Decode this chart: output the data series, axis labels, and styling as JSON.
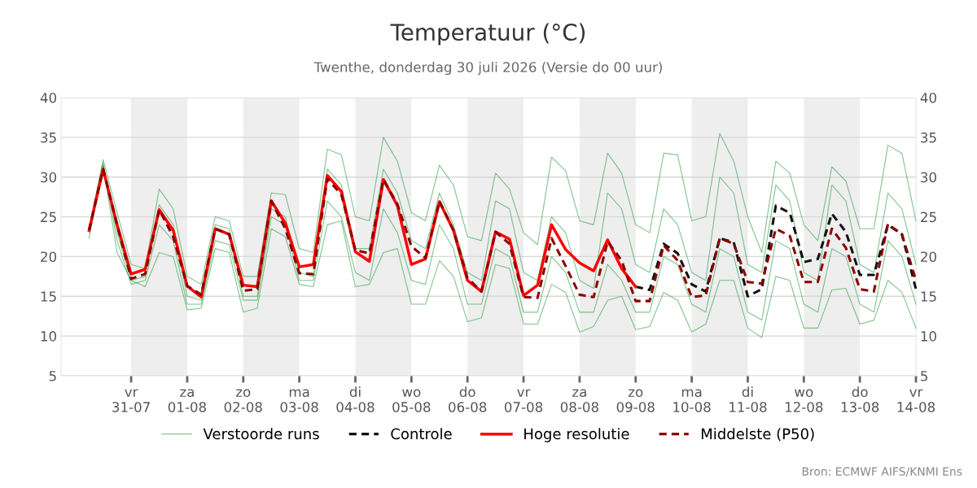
{
  "chart_data": {
    "type": "line",
    "title": "Temperatuur (°C)",
    "subtitle": "Twenthe, donderdag 30 juli 2026 (Versie do 00 uur)",
    "x": [
      "2026-07-30T06:00",
      "2026-07-30T12:00",
      "2026-07-30T18:00",
      "2026-07-31T00:00",
      "2026-07-31T06:00",
      "2026-07-31T12:00",
      "2026-07-31T18:00",
      "2026-08-01T00:00",
      "2026-08-01T06:00",
      "2026-08-01T12:00",
      "2026-08-01T18:00",
      "2026-08-02T00:00",
      "2026-08-02T06:00",
      "2026-08-02T12:00",
      "2026-08-02T18:00",
      "2026-08-03T00:00",
      "2026-08-03T06:00",
      "2026-08-03T12:00",
      "2026-08-03T18:00",
      "2026-08-04T00:00",
      "2026-08-04T06:00",
      "2026-08-04T12:00",
      "2026-08-04T18:00",
      "2026-08-05T00:00",
      "2026-08-05T06:00",
      "2026-08-05T12:00",
      "2026-08-05T18:00",
      "2026-08-06T00:00",
      "2026-08-06T06:00",
      "2026-08-06T12:00",
      "2026-08-06T18:00",
      "2026-08-07T00:00",
      "2026-08-07T06:00",
      "2026-08-07T12:00",
      "2026-08-07T18:00",
      "2026-08-08T00:00",
      "2026-08-08T06:00",
      "2026-08-08T12:00",
      "2026-08-08T18:00",
      "2026-08-09T00:00",
      "2026-08-09T06:00",
      "2026-08-09T12:00",
      "2026-08-09T18:00",
      "2026-08-10T00:00",
      "2026-08-10T06:00",
      "2026-08-10T12:00",
      "2026-08-10T18:00",
      "2026-08-11T00:00",
      "2026-08-11T06:00",
      "2026-08-11T12:00",
      "2026-08-11T18:00",
      "2026-08-12T00:00",
      "2026-08-12T06:00",
      "2026-08-12T12:00",
      "2026-08-12T18:00",
      "2026-08-13T00:00",
      "2026-08-13T06:00",
      "2026-08-13T12:00",
      "2026-08-13T18:00",
      "2026-08-14T00:00"
    ],
    "series": [
      {
        "name": "Verstoorde runs",
        "color": "#2e9e44",
        "values": [
          23.5,
          32.2,
          25.5,
          19,
          18.5,
          28.5,
          26,
          17.5,
          16.5,
          25,
          24.5,
          17.5,
          17.5,
          28,
          27.8,
          21,
          20.5,
          33.5,
          32.8,
          25,
          24.5,
          35,
          32,
          25.5,
          24.5,
          31.5,
          29,
          22.5,
          22,
          30.5,
          28.5,
          23,
          21.5,
          32.5,
          30.8,
          24.5,
          24,
          33,
          30.5,
          24,
          23,
          33,
          32.8,
          24.5,
          25,
          35.5,
          32,
          25,
          20.5,
          32,
          30.5,
          24,
          22,
          31.3,
          29.5,
          23.5,
          23.5,
          34,
          33,
          24.5
        ]
      },
      {
        "color": "#2e9e44",
        "values": [
          22.3,
          31.5,
          20.5,
          17,
          16.2,
          20.5,
          20,
          13.3,
          13.5,
          21,
          20.5,
          13,
          13.5,
          23.5,
          22.5,
          16.5,
          16.2,
          24,
          24.5,
          16.2,
          16.5,
          20.5,
          21,
          14,
          14,
          19.5,
          17.5,
          11.8,
          12.3,
          19,
          18.5,
          11.5,
          11.5,
          16.5,
          15.5,
          10.5,
          11.2,
          14.5,
          15,
          10.8,
          11.2,
          15.5,
          14.5,
          10.5,
          11.5,
          17,
          17,
          11,
          9.8,
          17.5,
          17,
          11,
          11,
          15.8,
          16,
          11.5,
          12,
          17,
          15.5,
          11
        ]
      },
      {
        "color": "#2e9e44",
        "values": [
          23,
          31.5,
          23,
          17,
          17.5,
          26.5,
          24,
          15,
          14.5,
          24,
          23.5,
          15,
          15,
          26,
          25,
          18,
          17.5,
          31,
          29,
          21,
          21,
          31,
          28,
          22,
          21,
          28,
          24,
          18,
          17,
          27,
          26,
          18,
          17,
          25,
          23,
          17,
          16,
          28,
          26,
          19,
          18,
          26,
          24,
          18,
          17,
          30,
          28,
          19,
          18,
          29,
          27,
          18,
          17,
          29,
          27,
          19,
          18,
          28,
          26,
          19
        ]
      },
      {
        "color": "#2e9e44",
        "values": [
          23.5,
          31.8,
          22,
          16.5,
          17,
          24,
          22,
          14,
          14,
          22,
          21.5,
          14.5,
          14.5,
          25,
          24,
          17,
          17,
          27,
          25,
          18,
          17,
          26,
          23,
          17,
          16.5,
          24,
          21,
          14,
          14,
          21,
          20,
          13,
          13,
          20,
          18,
          13,
          13,
          19,
          17,
          13,
          13,
          20,
          19,
          14,
          13,
          21,
          20,
          13,
          12,
          22,
          21,
          14,
          13,
          21,
          20,
          14,
          13,
          22,
          20,
          14
        ]
      },
      {
        "name": "Controle",
        "color": "#111111",
        "line_style": "dashed",
        "values": [
          null,
          null,
          null,
          null,
          null,
          null,
          null,
          null,
          null,
          null,
          null,
          null,
          null,
          null,
          null,
          null,
          null,
          null,
          null,
          null,
          null,
          null,
          null,
          null,
          null,
          null,
          null,
          null,
          null,
          null,
          null,
          null,
          null,
          null,
          null,
          null,
          null,
          null,
          null,
          16.2,
          15.8,
          21.6,
          20.4,
          16.5,
          15.6,
          22.3,
          21.8,
          15.0,
          15.9,
          26.4,
          25.5,
          19.3,
          19.7,
          25.4,
          23.1,
          17.7,
          17.7,
          24.0,
          22.8,
          15.9
        ]
      },
      {
        "name": "Hoge resolutie",
        "color": "#ff0000",
        "line_style": "solid",
        "values": [
          23.3,
          31.0,
          24,
          17.8,
          18.4,
          25.9,
          23.3,
          16.3,
          14.9,
          23.5,
          22.8,
          16.4,
          16.2,
          27.0,
          24.2,
          18.7,
          19.0,
          30.2,
          28.2,
          20.6,
          19.4,
          29.7,
          26.4,
          19.0,
          19.7,
          26.9,
          23.3,
          17.0,
          15.6,
          23.1,
          22.2,
          15.1,
          16.4,
          24.0,
          20.9,
          19.2,
          18.2,
          22.1,
          18.5,
          16.2,
          null,
          null,
          null,
          null,
          null,
          null,
          null,
          null,
          null,
          null,
          null,
          null,
          null,
          null,
          null,
          null,
          null,
          null,
          null,
          null
        ]
      },
      {
        "name": "Middelste (P50)",
        "color": "#8b0000",
        "line_style": "dashed",
        "values": [
          23.3,
          31.0,
          24,
          17.2,
          17.8,
          25.9,
          22.5,
          16.3,
          15.2,
          23.5,
          22.8,
          15.7,
          15.9,
          27.0,
          23.5,
          17.9,
          17.8,
          29.8,
          27.8,
          20.8,
          20.4,
          29.7,
          26.6,
          21.3,
          19.8,
          27.0,
          23.3,
          17.3,
          15.6,
          23.1,
          21.6,
          14.9,
          14.8,
          22.3,
          18.8,
          15.2,
          14.9,
          21.9,
          19.5,
          14.4,
          14.4,
          21.4,
          19.5,
          14.9,
          15.1,
          22.3,
          21.6,
          16.8,
          16.6,
          23.5,
          22.6,
          16.8,
          16.8,
          23.5,
          21.1,
          15.9,
          15.6,
          24.1,
          22.8,
          17.0
        ]
      }
    ],
    "xlim": [
      "2026-07-29T18:00",
      "2026-08-14T00:00"
    ],
    "xticks": [
      {
        "value": "2026-07-31",
        "label": "vr\n31-07"
      },
      {
        "value": "2026-08-01",
        "label": "za\n01-08"
      },
      {
        "value": "2026-08-02",
        "label": "zo\n02-08"
      },
      {
        "value": "2026-08-03",
        "label": "ma\n03-08"
      },
      {
        "value": "2026-08-04",
        "label": "di\n04-08"
      },
      {
        "value": "2026-08-05",
        "label": "wo\n05-08"
      },
      {
        "value": "2026-08-06",
        "label": "do\n06-08"
      },
      {
        "value": "2026-08-07",
        "label": "vr\n07-08"
      },
      {
        "value": "2026-08-08",
        "label": "za\n08-08"
      },
      {
        "value": "2026-08-09",
        "label": "zo\n09-08"
      },
      {
        "value": "2026-08-10",
        "label": "ma\n10-08"
      },
      {
        "value": "2026-08-11",
        "label": "di\n11-08"
      },
      {
        "value": "2026-08-12",
        "label": "wo\n12-08"
      },
      {
        "value": "2026-08-13",
        "label": "do\n13-08"
      },
      {
        "value": "2026-08-14",
        "label": "vr\n14-08"
      }
    ],
    "ylim": [
      5,
      40
    ],
    "yticks": [
      5,
      10,
      15,
      20,
      25,
      30,
      35,
      40
    ],
    "y2lim": [
      5,
      40
    ],
    "y2ticks": [
      5,
      10,
      15,
      20,
      25,
      30,
      35,
      40
    ],
    "bands": [
      {
        "axis": "x",
        "from": "2026-07-31",
        "to": "2026-08-01",
        "color": "#eeeeee"
      },
      {
        "axis": "x",
        "from": "2026-08-02",
        "to": "2026-08-03",
        "color": "#eeeeee"
      },
      {
        "axis": "x",
        "from": "2026-08-04",
        "to": "2026-08-05",
        "color": "#eeeeee"
      },
      {
        "axis": "x",
        "from": "2026-08-06",
        "to": "2026-08-07",
        "color": "#eeeeee"
      },
      {
        "axis": "x",
        "from": "2026-08-08",
        "to": "2026-08-09",
        "color": "#eeeeee"
      },
      {
        "axis": "x",
        "from": "2026-08-10",
        "to": "2026-08-11",
        "color": "#eeeeee"
      },
      {
        "axis": "x",
        "from": "2026-08-12",
        "to": "2026-08-13",
        "color": "#eeeeee"
      }
    ],
    "grid": "y",
    "legend": "bottom",
    "marker": "none",
    "annotations": [
      "Bron: ECMWF AIFS/KNMI Ens"
    ]
  }
}
